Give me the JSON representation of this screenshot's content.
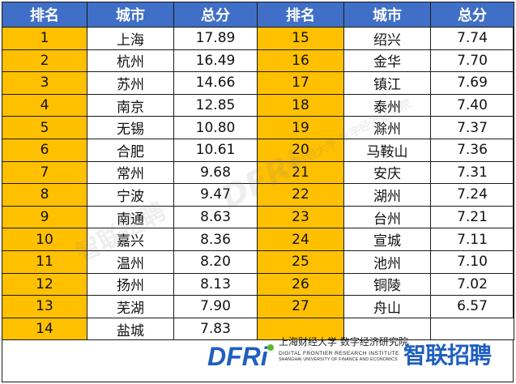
{
  "table": {
    "headers": [
      "排名",
      "城市",
      "总分",
      "排名",
      "城市",
      "总分"
    ],
    "left": [
      {
        "rank": "1",
        "city": "上海",
        "score": "17.89"
      },
      {
        "rank": "2",
        "city": "杭州",
        "score": "16.49"
      },
      {
        "rank": "3",
        "city": "苏州",
        "score": "14.66"
      },
      {
        "rank": "4",
        "city": "南京",
        "score": "12.85"
      },
      {
        "rank": "5",
        "city": "无锡",
        "score": "10.80"
      },
      {
        "rank": "6",
        "city": "合肥",
        "score": "10.61"
      },
      {
        "rank": "7",
        "city": "常州",
        "score": "9.68"
      },
      {
        "rank": "8",
        "city": "宁波",
        "score": "9.47"
      },
      {
        "rank": "9",
        "city": "南通",
        "score": "8.63"
      },
      {
        "rank": "10",
        "city": "嘉兴",
        "score": "8.36"
      },
      {
        "rank": "11",
        "city": "温州",
        "score": "8.20"
      },
      {
        "rank": "12",
        "city": "扬州",
        "score": "8.13"
      },
      {
        "rank": "13",
        "city": "芜湖",
        "score": "7.90"
      },
      {
        "rank": "14",
        "city": "盐城",
        "score": "7.83"
      }
    ],
    "right": [
      {
        "rank": "15",
        "city": "绍兴",
        "score": "7.74"
      },
      {
        "rank": "16",
        "city": "金华",
        "score": "7.70"
      },
      {
        "rank": "17",
        "city": "镇江",
        "score": "7.69"
      },
      {
        "rank": "18",
        "city": "泰州",
        "score": "7.40"
      },
      {
        "rank": "19",
        "city": "滁州",
        "score": "7.37"
      },
      {
        "rank": "20",
        "city": "马鞍山",
        "score": "7.36"
      },
      {
        "rank": "21",
        "city": "安庆",
        "score": "7.31"
      },
      {
        "rank": "22",
        "city": "湖州",
        "score": "7.24"
      },
      {
        "rank": "23",
        "city": "台州",
        "score": "7.21"
      },
      {
        "rank": "24",
        "city": "宣城",
        "score": "7.11"
      },
      {
        "rank": "25",
        "city": "池州",
        "score": "7.10"
      },
      {
        "rank": "26",
        "city": "铜陵",
        "score": "7.02"
      },
      {
        "rank": "27",
        "city": "舟山",
        "score": "6.57"
      }
    ]
  },
  "footer": {
    "institute_cn": "上海财经大学 数字经济研究院",
    "institute_en": "DIGITAL FRONTIER RESEARCH INSTITUTE",
    "university_en": "SHANGHAI UNIVERSITY OF FINANCE AND ECONOMICS",
    "dfri_logo_text": "DFRi",
    "zhilian_logo_text": "智联招聘"
  },
  "watermarks": [
    "智联招聘",
    "DFRi",
    "上海财经大学 数字经济研究院"
  ],
  "colors": {
    "header_bg": "#3f6fc6",
    "rank_bg": "#ffc000",
    "brand_blue": "#1f5fbf",
    "brand_green": "#58b82e"
  }
}
